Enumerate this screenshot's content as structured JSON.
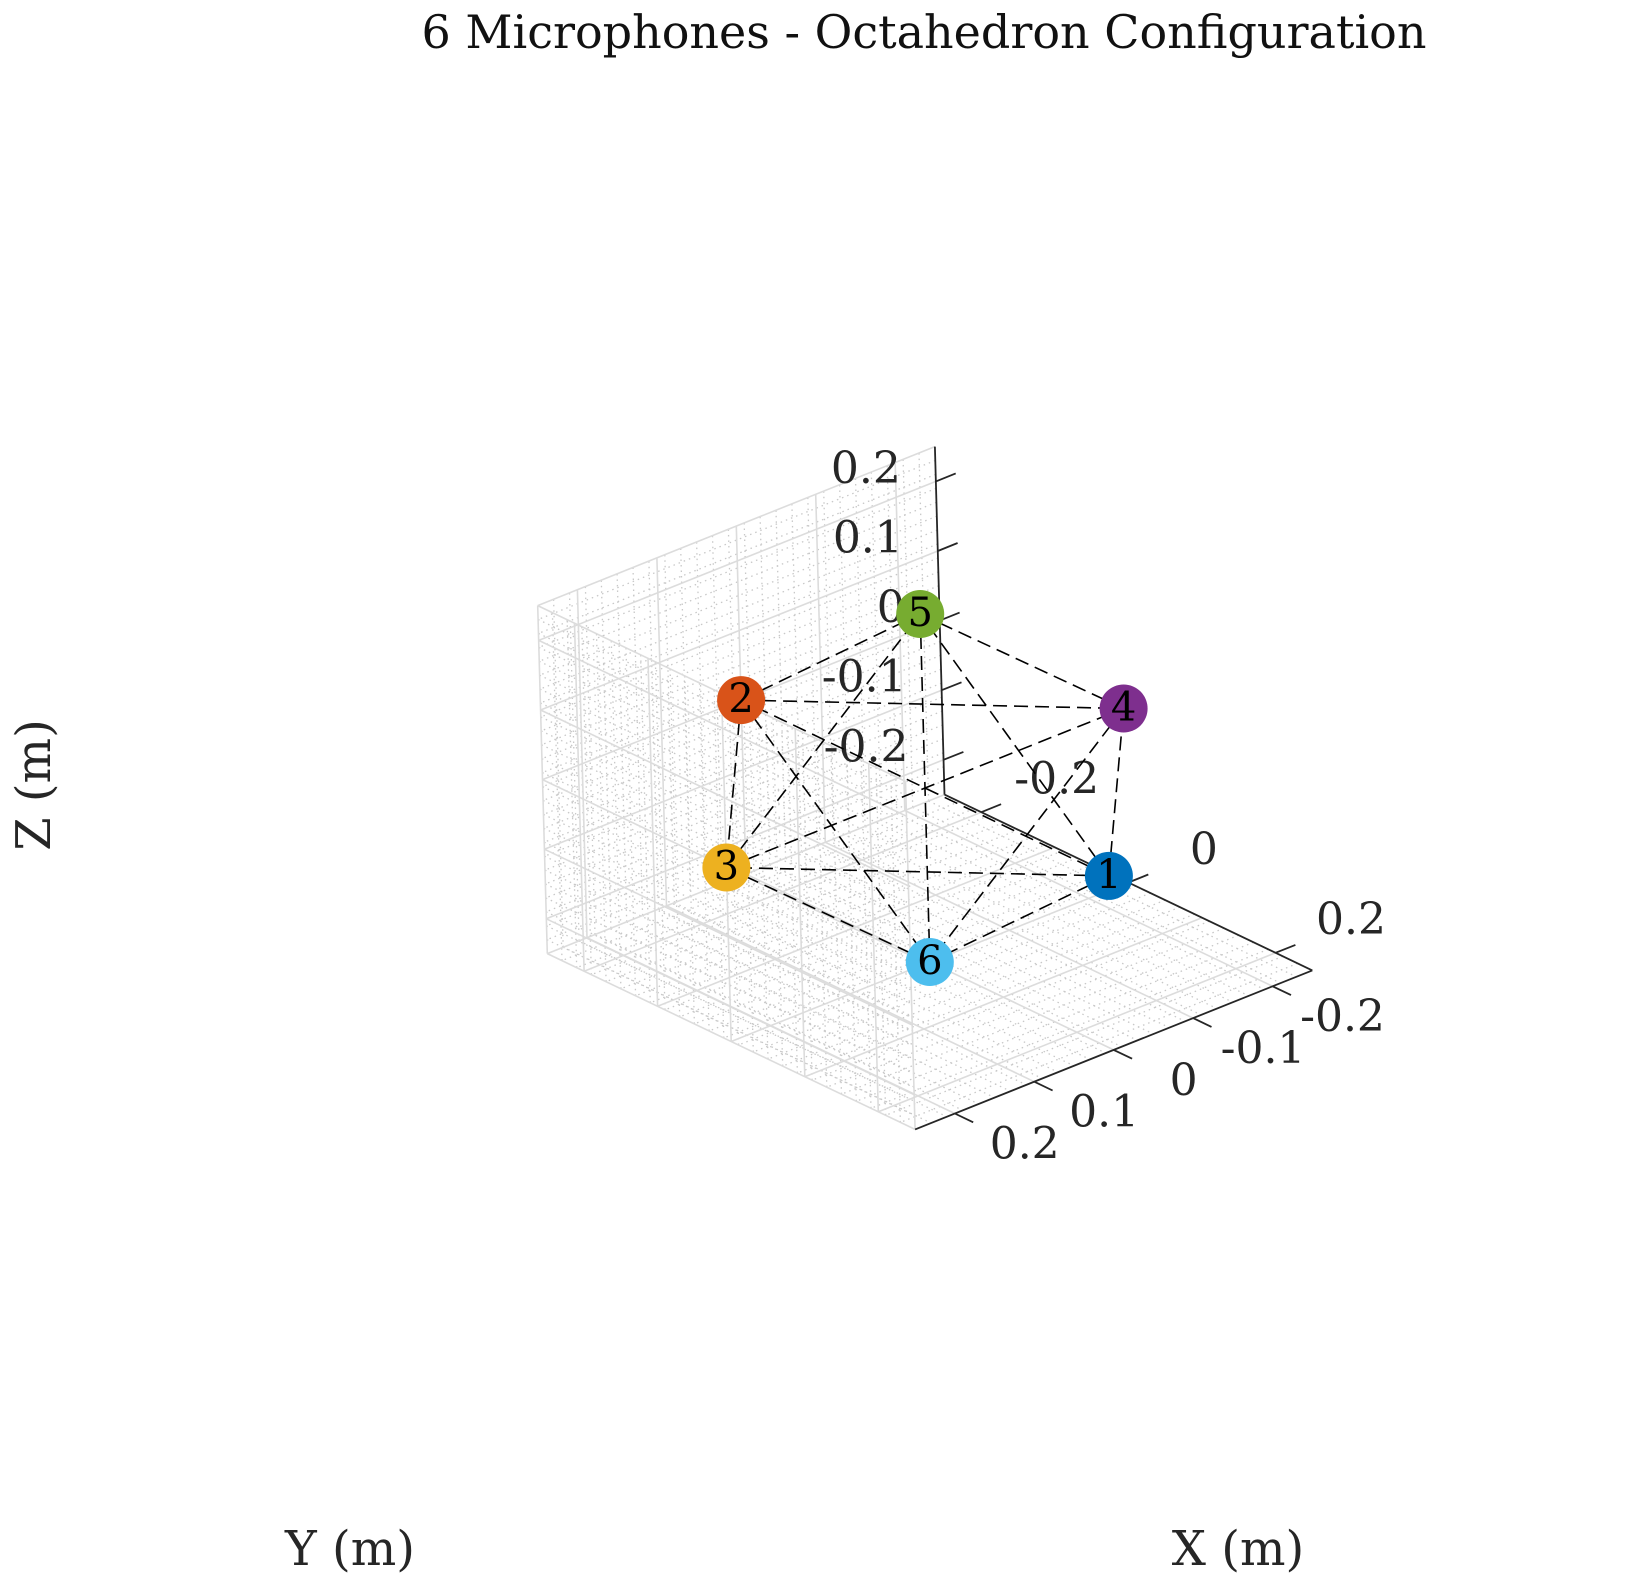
{
  "chart_data": {
    "type": "scatter3d",
    "title": "6 Microphones - Octahedron Configuration",
    "xlabel": "X (m)",
    "ylabel": "Y (m)",
    "zlabel": "Z (m)",
    "xlim": [
      -0.25,
      0.25
    ],
    "ylim": [
      -0.25,
      0.25
    ],
    "zlim": [
      -0.25,
      0.25
    ],
    "x_ticks": [
      {
        "value": -0.2,
        "label": "-0.2"
      },
      {
        "value": 0,
        "label": "0"
      },
      {
        "value": 0.2,
        "label": "0.2"
      }
    ],
    "y_ticks": [
      {
        "value": -0.2,
        "label": "-0.2"
      },
      {
        "value": -0.1,
        "label": "-0.1"
      },
      {
        "value": 0,
        "label": "0"
      },
      {
        "value": 0.1,
        "label": "0.1"
      },
      {
        "value": 0.2,
        "label": "0.2"
      }
    ],
    "z_ticks": [
      {
        "value": -0.2,
        "label": "-0.2"
      },
      {
        "value": -0.1,
        "label": "-0.1"
      },
      {
        "value": 0,
        "label": "0"
      },
      {
        "value": 0.1,
        "label": "0.1"
      },
      {
        "value": 0.2,
        "label": "0.2"
      }
    ],
    "grid": true,
    "minor_grid": true,
    "view": {
      "azimuth": 45,
      "elevation": 35.26
    },
    "points": [
      {
        "label": "1",
        "x": 0.25,
        "y": 0,
        "z": 0,
        "color": "#0072BD"
      },
      {
        "label": "2",
        "x": -0.25,
        "y": 0,
        "z": 0,
        "color": "#D95319"
      },
      {
        "label": "3",
        "x": 0,
        "y": 0.25,
        "z": 0,
        "color": "#EDB120"
      },
      {
        "label": "4",
        "x": 0,
        "y": -0.25,
        "z": 0,
        "color": "#7E2F8E"
      },
      {
        "label": "5",
        "x": 0,
        "y": 0,
        "z": 0.25,
        "color": "#77AC30"
      },
      {
        "label": "6",
        "x": 0,
        "y": 0,
        "z": -0.25,
        "color": "#4DBEEE"
      }
    ],
    "edges": "all pairs, black dashed"
  }
}
